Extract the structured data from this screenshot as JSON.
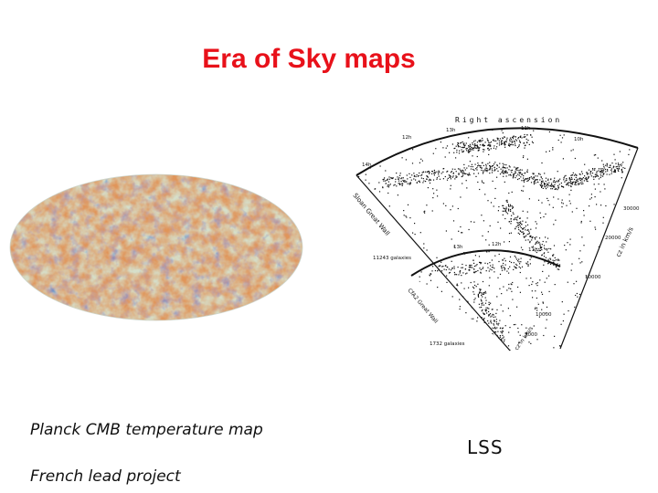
{
  "slide": {
    "title": "Era of Sky maps",
    "left_caption_1": "Planck CMB temperature map",
    "left_caption_2": "French lead project",
    "right_caption": "LSS"
  },
  "lss_figure": {
    "top_label": "Right ascension",
    "outer_left_axis": "Sloan Great Wall",
    "outer_count": "11243 galaxies",
    "inner_left_axis": "CfA2 Great Wall",
    "inner_count": "1732 galaxies",
    "outer_right_axis": "cz in km/s",
    "inner_right_axis": "cz in km/s",
    "ra_ticks": [
      "12h",
      "11h",
      "13h",
      "10h",
      "14h"
    ],
    "outer_cz_ticks": [
      "30000",
      "20000",
      "10000"
    ],
    "inner_cz_ticks": [
      "10000",
      "5000"
    ],
    "inner_ra_ticks": [
      "13h",
      "12h",
      "11h"
    ]
  },
  "colors": {
    "title": "#e8111a",
    "cmb_blue": "#3f78c8",
    "cmb_orange": "#e09a55",
    "cmb_pale": "#d8e0c8"
  }
}
